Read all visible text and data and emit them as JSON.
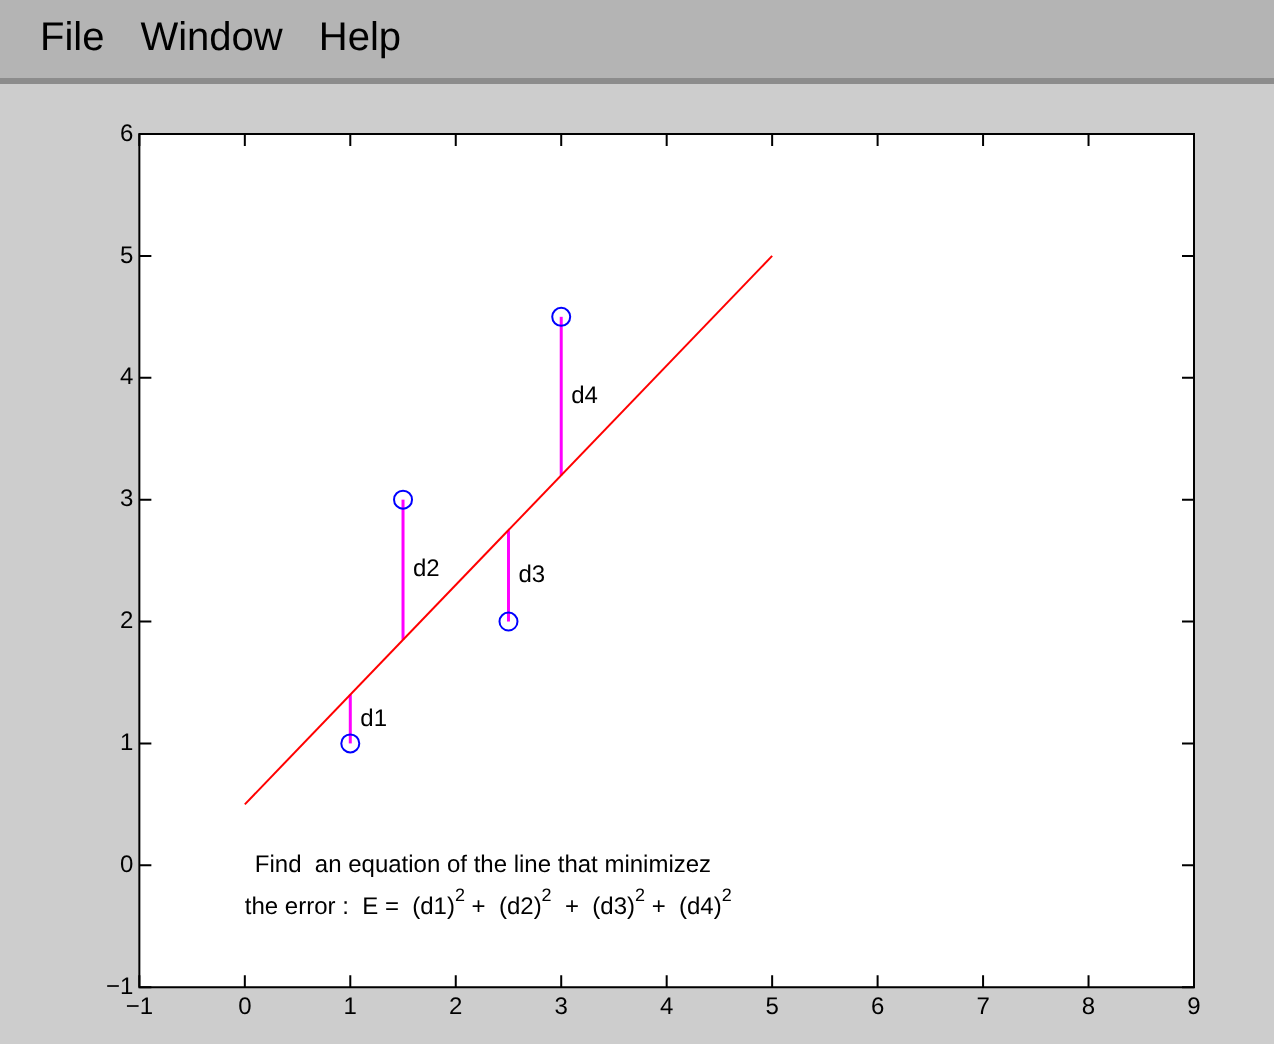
{
  "chart_data": {
    "type": "scatter",
    "xlim": [
      -1,
      9
    ],
    "ylim": [
      -1,
      6
    ],
    "xticks": [
      -1,
      0,
      1,
      2,
      3,
      4,
      5,
      6,
      7,
      8,
      9
    ],
    "yticks": [
      -1,
      0,
      1,
      2,
      3,
      4,
      5,
      6
    ],
    "grid": false,
    "legend": false,
    "series": [
      {
        "color": "#0000ff",
        "marker": "circle",
        "x": [
          1,
          1.5,
          2.5,
          3
        ],
        "values": [
          1,
          3,
          2,
          4.5
        ],
        "errors": [
          [
            1,
            1.4
          ],
          [
            1.85,
            3
          ],
          [
            2,
            2.75
          ],
          [
            3.2,
            4.5
          ]
        ]
      },
      {
        "type": "line",
        "color": "#ff0000",
        "marker": "none",
        "line_style": "solid",
        "x": [
          0,
          5
        ],
        "values": [
          0.5,
          5
        ]
      }
    ],
    "annotations": [
      "File",
      "Window",
      "Help",
      "d1",
      "d2",
      "d3",
      "d4",
      "Find  an equation of the line that minimizez",
      "the error :  E =  (d1)$^{2}$ +  (d2)$^{2}$  +  (d3)$^{2}$ +  (d4)$^{2}$"
    ]
  }
}
